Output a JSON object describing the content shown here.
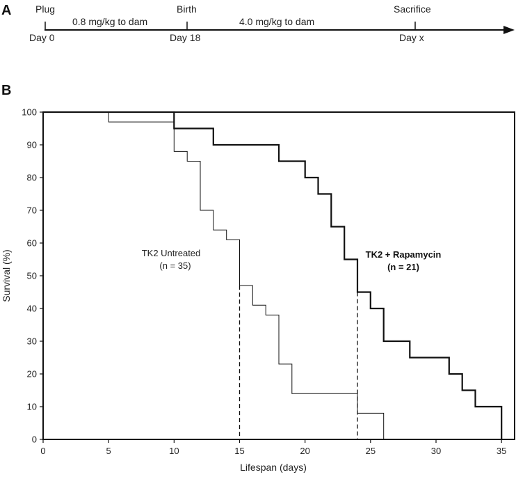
{
  "panel_a": {
    "letter": "A",
    "events": [
      {
        "above": "Plug",
        "below": "Day 0"
      },
      {
        "above": "Birth",
        "below": "Day 18"
      },
      {
        "above": "Sacrifice",
        "below": "Day x"
      }
    ],
    "doses": [
      "0.8 mg/kg to dam",
      "4.0 mg/kg to dam"
    ]
  },
  "panel_b": {
    "letter": "B"
  },
  "chart_data": {
    "type": "line",
    "subtype": "kaplan-meier step",
    "title": "",
    "xlabel": "Lifespan (days)",
    "ylabel": "Survival (%)",
    "xlim": [
      0,
      36
    ],
    "ylim": [
      0,
      100
    ],
    "xticks": [
      0,
      5,
      10,
      15,
      20,
      25,
      30,
      35
    ],
    "yticks": [
      0,
      10,
      20,
      30,
      40,
      50,
      60,
      70,
      80,
      90,
      100
    ],
    "series": [
      {
        "name": "TK2 Untreated",
        "n_label": "(n = 35)",
        "style": "thin",
        "points": [
          [
            0,
            100
          ],
          [
            5,
            97
          ],
          [
            10,
            88
          ],
          [
            11,
            85
          ],
          [
            12,
            70
          ],
          [
            13,
            64
          ],
          [
            14,
            61
          ],
          [
            15,
            47
          ],
          [
            16,
            41
          ],
          [
            17,
            38
          ],
          [
            18,
            23
          ],
          [
            19,
            14
          ],
          [
            24,
            8
          ],
          [
            26,
            0
          ]
        ]
      },
      {
        "name": "TK2 + Rapamycin",
        "n_label": "(n = 21)",
        "style": "bold",
        "points": [
          [
            0,
            100
          ],
          [
            10,
            95
          ],
          [
            13,
            90
          ],
          [
            18,
            85
          ],
          [
            20,
            80
          ],
          [
            21,
            75
          ],
          [
            22,
            65
          ],
          [
            23,
            55
          ],
          [
            24,
            45
          ],
          [
            25,
            40
          ],
          [
            26,
            30
          ],
          [
            28,
            25
          ],
          [
            31,
            20
          ],
          [
            32,
            15
          ],
          [
            33,
            10
          ],
          [
            35,
            0
          ]
        ]
      }
    ],
    "median_lines": [
      {
        "x": 15,
        "y": 47
      },
      {
        "x": 24,
        "y": 45
      }
    ]
  }
}
